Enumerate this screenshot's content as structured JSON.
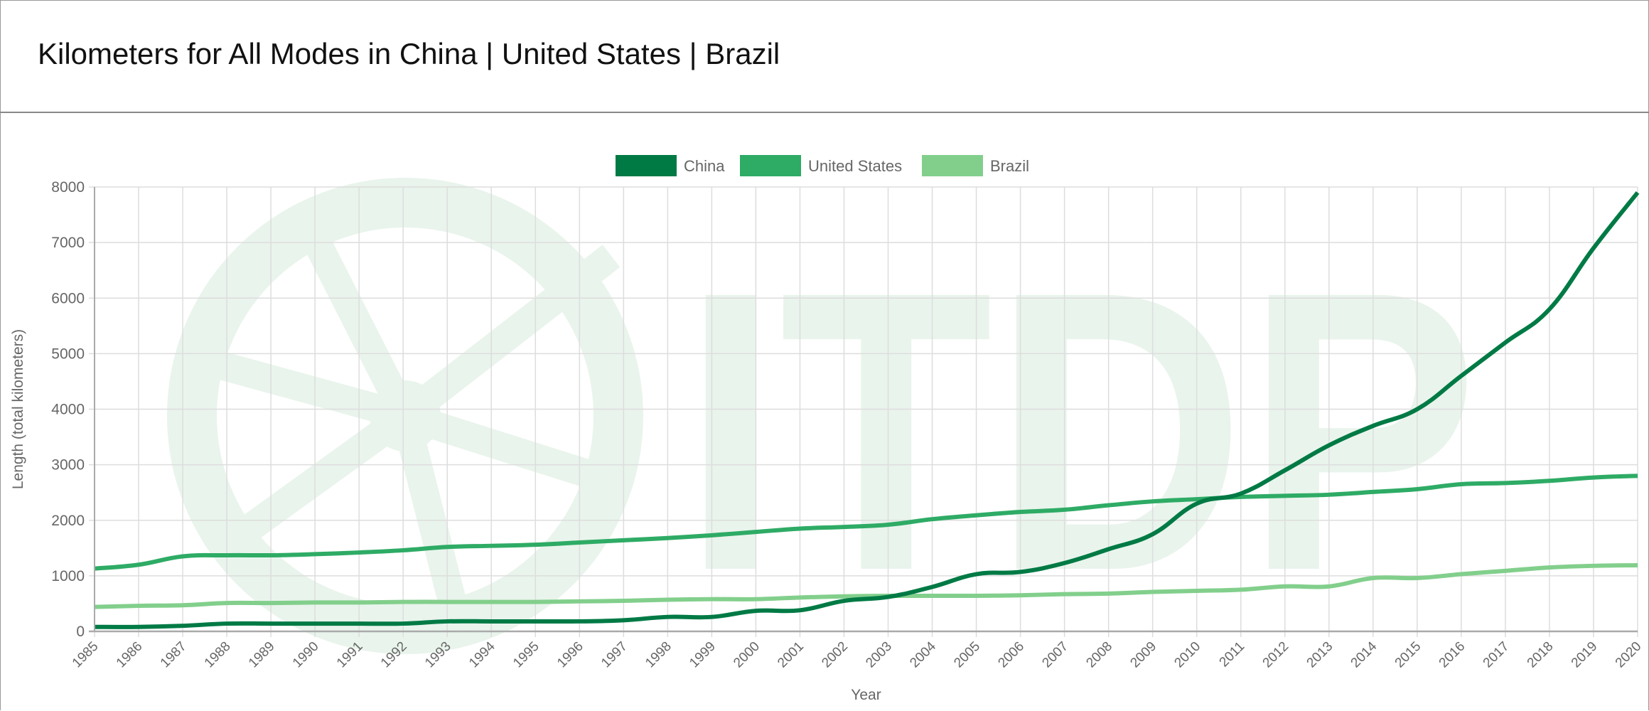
{
  "header": {
    "title": "Kilometers for All Modes in China | United States | Brazil"
  },
  "watermark": "ITDP",
  "chart_data": {
    "type": "line",
    "title": "Kilometers for All Modes in China | United States | Brazil",
    "xlabel": "Year",
    "ylabel": "Length (total kilometers)",
    "ylim": [
      0,
      8000
    ],
    "yticks": [
      0,
      1000,
      2000,
      3000,
      4000,
      5000,
      6000,
      7000,
      8000
    ],
    "grid": true,
    "legend_position": "top-center",
    "x": [
      "1985",
      "1986",
      "1987",
      "1988",
      "1989",
      "1990",
      "1991",
      "1992",
      "1993",
      "1994",
      "1995",
      "1996",
      "1997",
      "1998",
      "1999",
      "2000",
      "2001",
      "2002",
      "2003",
      "2004",
      "2005",
      "2006",
      "2007",
      "2008",
      "2009",
      "2010",
      "2011",
      "2012",
      "2013",
      "2014",
      "2015",
      "2016",
      "2017",
      "2018",
      "2019",
      "2020"
    ],
    "series": [
      {
        "name": "China",
        "color": "#007a45",
        "values": [
          80,
          80,
          100,
          140,
          140,
          140,
          140,
          140,
          180,
          180,
          180,
          180,
          200,
          260,
          260,
          370,
          380,
          550,
          620,
          800,
          1030,
          1070,
          1230,
          1480,
          1750,
          2300,
          2480,
          2900,
          3350,
          3700,
          4000,
          4600,
          5200,
          5800,
          6900,
          7900
        ]
      },
      {
        "name": "United States",
        "color": "#2eab65",
        "values": [
          1130,
          1200,
          1350,
          1370,
          1370,
          1390,
          1420,
          1460,
          1520,
          1540,
          1560,
          1600,
          1640,
          1680,
          1730,
          1790,
          1850,
          1880,
          1920,
          2020,
          2090,
          2150,
          2190,
          2270,
          2340,
          2380,
          2420,
          2440,
          2460,
          2510,
          2560,
          2650,
          2670,
          2710,
          2770,
          2800
        ]
      },
      {
        "name": "Brazil",
        "color": "#82cf8c",
        "values": [
          440,
          460,
          470,
          510,
          510,
          520,
          520,
          530,
          530,
          530,
          530,
          540,
          550,
          570,
          580,
          580,
          610,
          630,
          640,
          640,
          640,
          650,
          670,
          680,
          710,
          730,
          750,
          810,
          810,
          960,
          960,
          1030,
          1090,
          1150,
          1180,
          1190
        ]
      }
    ]
  }
}
